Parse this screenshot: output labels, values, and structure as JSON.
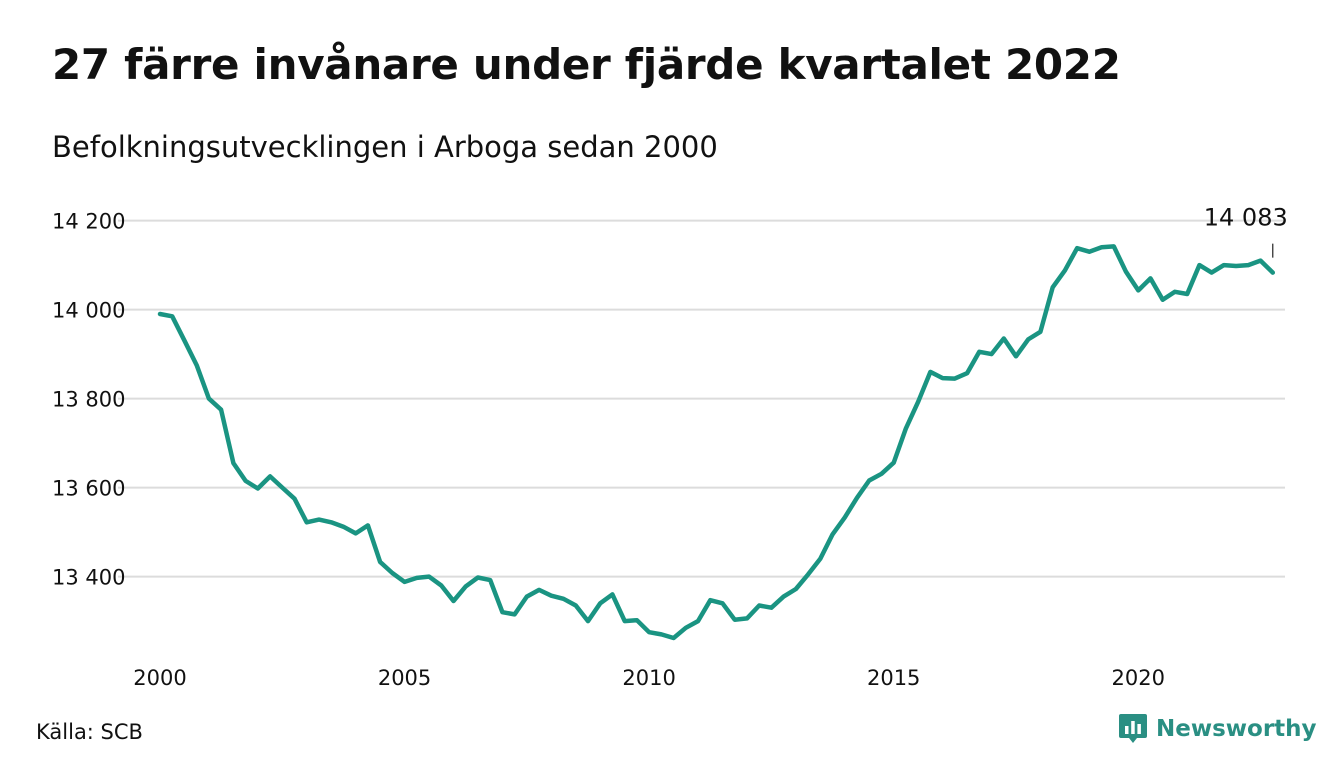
{
  "title": "27 färre invånare under fjärde kvartalet 2022",
  "subtitle": "Befolkningsutvecklingen i Arboga sedan 2000",
  "source": "Källa: SCB",
  "brand": {
    "name": "Newsworthy",
    "icon": "newsworthy-logo-icon"
  },
  "colors": {
    "line": "#1a9482",
    "grid": "#dcdcdc",
    "text": "#111111",
    "brand": "#2a8f83"
  },
  "chart_data": {
    "type": "line",
    "x_ticks": [
      2000,
      2005,
      2010,
      2015,
      2020
    ],
    "y_ticks": [
      13400,
      13600,
      13800,
      14000,
      14200
    ],
    "y_tick_labels": [
      "13 400",
      "13 600",
      "13 800",
      "14 000",
      "14 200"
    ],
    "xlim": [
      2000,
      2023
    ],
    "ylim": [
      13235,
      14235
    ],
    "grid": "horizontal",
    "last_value_label": "14 083",
    "series": [
      {
        "x": [
          2000.0,
          2000.25,
          2000.5,
          2000.75,
          2001.0,
          2001.25,
          2001.5,
          2001.75,
          2002.0,
          2002.25,
          2002.5,
          2002.75,
          2003.0,
          2003.25,
          2003.5,
          2003.75,
          2004.0,
          2004.25,
          2004.5,
          2004.75,
          2005.0,
          2005.25,
          2005.5,
          2005.75,
          2006.0,
          2006.25,
          2006.5,
          2006.75,
          2007.0,
          2007.25,
          2007.5,
          2007.75,
          2008.0,
          2008.25,
          2008.5,
          2008.75,
          2009.0,
          2009.25,
          2009.5,
          2009.75,
          2010.0,
          2010.25,
          2010.5,
          2010.75,
          2011.0,
          2011.25,
          2011.5,
          2011.75,
          2012.0,
          2012.25,
          2012.5,
          2012.75,
          2013.0,
          2013.25,
          2013.5,
          2013.75,
          2014.0,
          2014.25,
          2014.5,
          2014.75,
          2015.0,
          2015.25,
          2015.5,
          2015.75,
          2016.0,
          2016.25,
          2016.5,
          2016.75,
          2017.0,
          2017.25,
          2017.5,
          2017.75,
          2018.0,
          2018.25,
          2018.5,
          2018.75,
          2019.0,
          2019.25,
          2019.5,
          2019.75,
          2020.0,
          2020.25,
          2020.5,
          2020.75,
          2021.0,
          2021.25,
          2021.5,
          2021.75,
          2022.0,
          2022.25,
          2022.5,
          2022.75
        ],
        "values": [
          13990,
          13985,
          13930,
          13875,
          13800,
          13775,
          13655,
          13615,
          13598,
          13625,
          13600,
          13575,
          13522,
          13528,
          13522,
          13512,
          13497,
          13515,
          13433,
          13408,
          13388,
          13397,
          13400,
          13380,
          13345,
          13378,
          13398,
          13392,
          13320,
          13315,
          13355,
          13370,
          13357,
          13350,
          13335,
          13300,
          13340,
          13360,
          13300,
          13302,
          13275,
          13270,
          13262,
          13285,
          13300,
          13347,
          13340,
          13303,
          13306,
          13335,
          13330,
          13355,
          13372,
          13405,
          13440,
          13495,
          13533,
          13577,
          13616,
          13631,
          13656,
          13733,
          13793,
          13860,
          13846,
          13845,
          13857,
          13905,
          13900,
          13935,
          13895,
          13933,
          13950,
          14050,
          14088,
          14138,
          14130,
          14140,
          14142,
          14085,
          14043,
          14070,
          14022,
          14040,
          14035,
          14100,
          14083,
          14100,
          14098,
          14100,
          14110,
          14083
        ]
      }
    ]
  }
}
